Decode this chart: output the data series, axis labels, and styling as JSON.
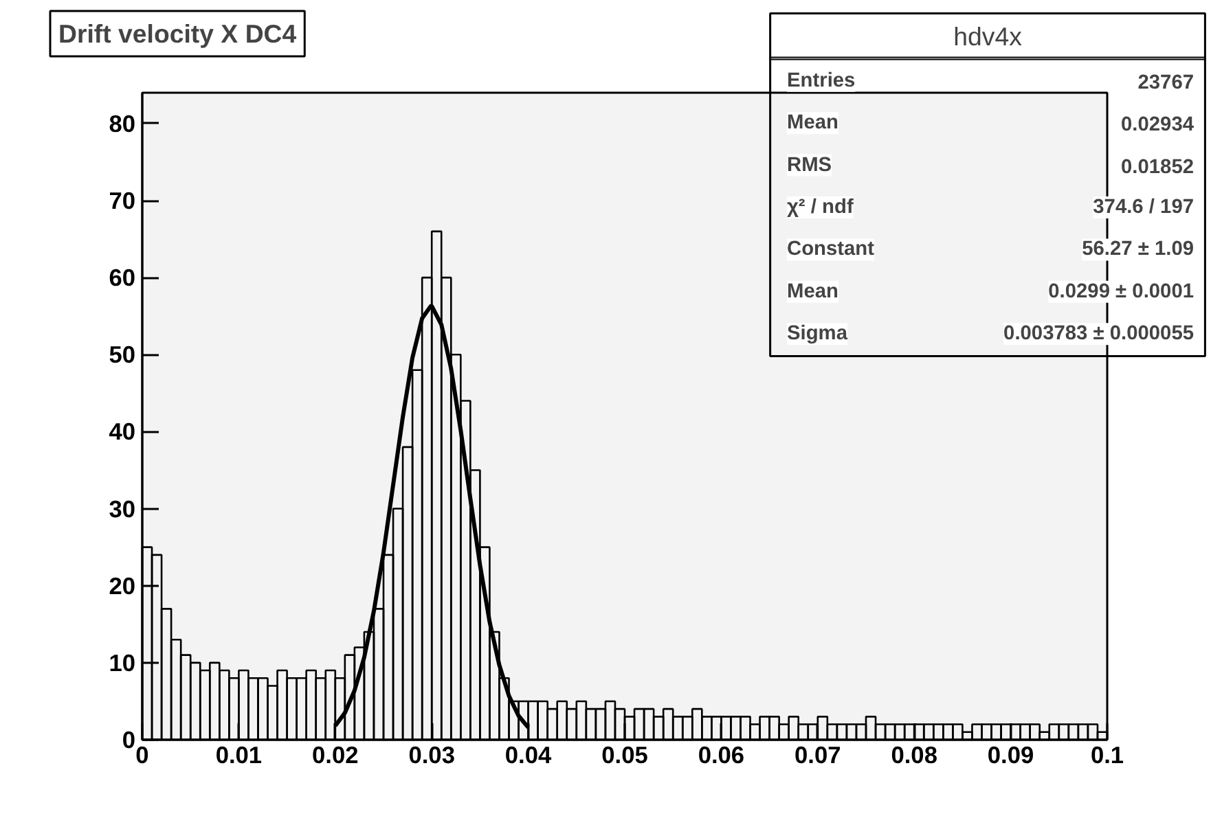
{
  "chart_data": {
    "type": "histogram",
    "title": "Drift velocity X DC4",
    "bins": [
      0,
      0.001,
      0.002,
      0.003,
      0.004,
      0.005,
      0.006,
      0.007,
      0.008,
      0.009,
      0.01,
      0.011,
      0.012,
      0.013,
      0.014,
      0.015,
      0.016,
      0.017,
      0.018,
      0.019,
      0.02,
      0.021,
      0.022,
      0.023,
      0.024,
      0.025,
      0.026,
      0.027,
      0.028,
      0.029,
      0.03,
      0.031,
      0.032,
      0.033,
      0.034,
      0.035,
      0.036,
      0.037,
      0.038,
      0.039,
      0.04,
      0.041,
      0.042,
      0.043,
      0.044,
      0.045,
      0.046,
      0.047,
      0.048,
      0.049,
      0.05,
      0.051,
      0.052,
      0.053,
      0.054,
      0.055,
      0.056,
      0.057,
      0.058,
      0.059,
      0.06,
      0.061,
      0.062,
      0.063,
      0.064,
      0.065,
      0.066,
      0.067,
      0.068,
      0.069,
      0.07,
      0.071,
      0.072,
      0.073,
      0.074,
      0.075,
      0.076,
      0.077,
      0.078,
      0.079,
      0.08,
      0.081,
      0.082,
      0.083,
      0.084,
      0.085,
      0.086,
      0.087,
      0.088,
      0.089,
      0.09,
      0.091,
      0.092,
      0.093,
      0.094,
      0.095,
      0.096,
      0.097,
      0.098,
      0.099,
      0.1
    ],
    "values": [
      25,
      24,
      17,
      13,
      11,
      10,
      9,
      10,
      9,
      8,
      9,
      8,
      8,
      7,
      9,
      8,
      8,
      9,
      8,
      9,
      8,
      11,
      12,
      14,
      17,
      24,
      30,
      38,
      48,
      60,
      66,
      60,
      50,
      44,
      35,
      25,
      14,
      8,
      5,
      5,
      5,
      5,
      4,
      5,
      4,
      5,
      4,
      4,
      5,
      4,
      3,
      4,
      4,
      3,
      4,
      3,
      3,
      4,
      3,
      3,
      3,
      3,
      3,
      2,
      3,
      3,
      2,
      3,
      2,
      2,
      3,
      2,
      2,
      2,
      2,
      3,
      2,
      2,
      2,
      2,
      2,
      2,
      2,
      2,
      2,
      1,
      2,
      2,
      2,
      2,
      2,
      2,
      2,
      1,
      2,
      2,
      2,
      2,
      2,
      1
    ],
    "color": "#000000",
    "series": [
      {
        "type": "line",
        "color": "#000000",
        "x": [
          0.02,
          0.021,
          0.022,
          0.023,
          0.024,
          0.025,
          0.026,
          0.027,
          0.028,
          0.029,
          0.0299,
          0.03,
          0.031,
          0.032,
          0.033,
          0.034,
          0.035,
          0.036,
          0.037,
          0.038,
          0.039,
          0.04
        ],
        "values": [
          1.8,
          3.5,
          6.4,
          10.7,
          16.7,
          24.3,
          33.1,
          41.9,
          49.6,
          54.7,
          56.3,
          56.3,
          53.9,
          48.2,
          40.2,
          31.3,
          22.7,
          15.3,
          9.7,
          5.7,
          3.1,
          1.6
        ]
      }
    ],
    "xlim": [
      0,
      0.1
    ],
    "ylim": [
      0,
      84
    ],
    "xticks": [
      0,
      0.01,
      0.02,
      0.03,
      0.04,
      0.05,
      0.06,
      0.07,
      0.08,
      0.09,
      0.1
    ],
    "yticks": [
      0,
      10,
      20,
      30,
      40,
      50,
      60,
      70,
      80
    ],
    "annotations": [
      "hdv4x",
      "Entries",
      "23767",
      "Mean",
      "0.02934",
      "RMS",
      "0.01852",
      "χ² / ndf",
      "374.6 / 197",
      "Constant",
      "56.27 ± 1.09",
      "Mean",
      "0.0299 ± 0.0001",
      "Sigma",
      "0.003783 ± 0.000055"
    ]
  }
}
